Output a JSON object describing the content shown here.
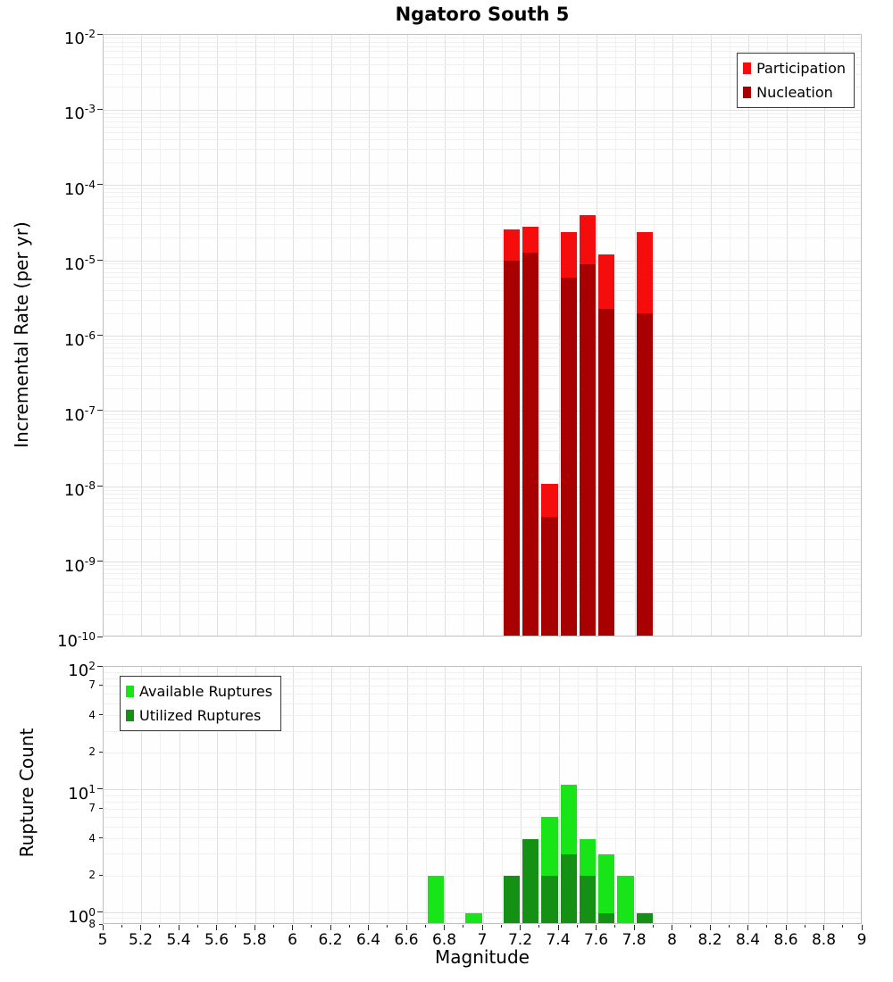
{
  "title": "Ngatoro South 5",
  "xlabel": "Magnitude",
  "x_ticks": [
    "5",
    "5.2",
    "5.4",
    "5.6",
    "5.8",
    "6",
    "6.2",
    "6.4",
    "6.6",
    "6.8",
    "7",
    "7.2",
    "7.4",
    "7.6",
    "7.8",
    "8",
    "8.2",
    "8.4",
    "8.6",
    "8.8",
    "9"
  ],
  "chart_data": [
    {
      "type": "bar",
      "title": "Ngatoro South 5",
      "ylabel": "Incremental Rate (per yr)",
      "xlabel": "Magnitude",
      "y_scale": "log",
      "ylim": [
        1e-10,
        0.01
      ],
      "xlim": [
        5,
        9
      ],
      "bin_width": 0.1,
      "grid": true,
      "legend": {
        "position": "top-right",
        "items": [
          {
            "label": "Participation",
            "color": "#f50d0d"
          },
          {
            "label": "Nucleation",
            "color": "#a80000"
          }
        ]
      },
      "y_ticks": [
        {
          "value": 0.01,
          "label": "10^-2",
          "major": true
        },
        {
          "value": 0.001,
          "label": "10^-3",
          "major": true
        },
        {
          "value": 0.0001,
          "label": "10^-4",
          "major": true
        },
        {
          "value": 1e-05,
          "label": "10^-5",
          "major": true
        },
        {
          "value": 1e-06,
          "label": "10^-6",
          "major": true
        },
        {
          "value": 1e-07,
          "label": "10^-7",
          "major": true
        },
        {
          "value": 1e-08,
          "label": "10^-8",
          "major": true
        },
        {
          "value": 1e-09,
          "label": "10^-9",
          "major": true
        },
        {
          "value": 1e-10,
          "label": "10^-10",
          "major": true
        }
      ],
      "series": [
        {
          "name": "Participation",
          "color": "#f50d0d",
          "points": [
            [
              7.15,
              2.6e-05
            ],
            [
              7.25,
              2.8e-05
            ],
            [
              7.35,
              1.1e-08
            ],
            [
              7.45,
              2.4e-05
            ],
            [
              7.55,
              4e-05
            ],
            [
              7.65,
              1.2e-05
            ],
            [
              7.85,
              2.4e-05
            ]
          ]
        },
        {
          "name": "Nucleation",
          "color": "#a80000",
          "points": [
            [
              7.15,
              1e-05
            ],
            [
              7.25,
              1.3e-05
            ],
            [
              7.35,
              4e-09
            ],
            [
              7.45,
              6e-06
            ],
            [
              7.55,
              9e-06
            ],
            [
              7.65,
              2.3e-06
            ],
            [
              7.85,
              2e-06
            ]
          ]
        }
      ]
    },
    {
      "type": "bar",
      "title": "",
      "ylabel": "Rupture Count",
      "xlabel": "Magnitude",
      "y_scale": "log",
      "ylim": [
        0.8,
        100
      ],
      "xlim": [
        5,
        9
      ],
      "bin_width": 0.1,
      "grid": true,
      "legend": {
        "position": "top-left",
        "items": [
          {
            "label": "Available Ruptures",
            "color": "#17e517"
          },
          {
            "label": "Utilized Ruptures",
            "color": "#149014"
          }
        ]
      },
      "y_ticks": [
        {
          "value": 100,
          "label": "10^2",
          "major": true
        },
        {
          "value": 70,
          "label": "7",
          "major": false
        },
        {
          "value": 40,
          "label": "4",
          "major": false
        },
        {
          "value": 20,
          "label": "2",
          "major": false
        },
        {
          "value": 10,
          "label": "10^1",
          "major": true
        },
        {
          "value": 7,
          "label": "7",
          "major": false
        },
        {
          "value": 4,
          "label": "4",
          "major": false
        },
        {
          "value": 2,
          "label": "2",
          "major": false
        },
        {
          "value": 1,
          "label": "10^0",
          "major": true
        },
        {
          "value": 0.8,
          "label": "8",
          "major": false
        }
      ],
      "series": [
        {
          "name": "Available Ruptures",
          "color": "#17e517",
          "points": [
            [
              6.75,
              2
            ],
            [
              6.95,
              1
            ],
            [
              7.15,
              2
            ],
            [
              7.25,
              4
            ],
            [
              7.35,
              6
            ],
            [
              7.45,
              11
            ],
            [
              7.55,
              4
            ],
            [
              7.65,
              3
            ],
            [
              7.75,
              2
            ],
            [
              7.85,
              1
            ]
          ]
        },
        {
          "name": "Utilized Ruptures",
          "color": "#149014",
          "points": [
            [
              7.15,
              2
            ],
            [
              7.25,
              4
            ],
            [
              7.35,
              2
            ],
            [
              7.45,
              3
            ],
            [
              7.55,
              2
            ],
            [
              7.65,
              1
            ],
            [
              7.85,
              1
            ]
          ]
        }
      ]
    }
  ]
}
